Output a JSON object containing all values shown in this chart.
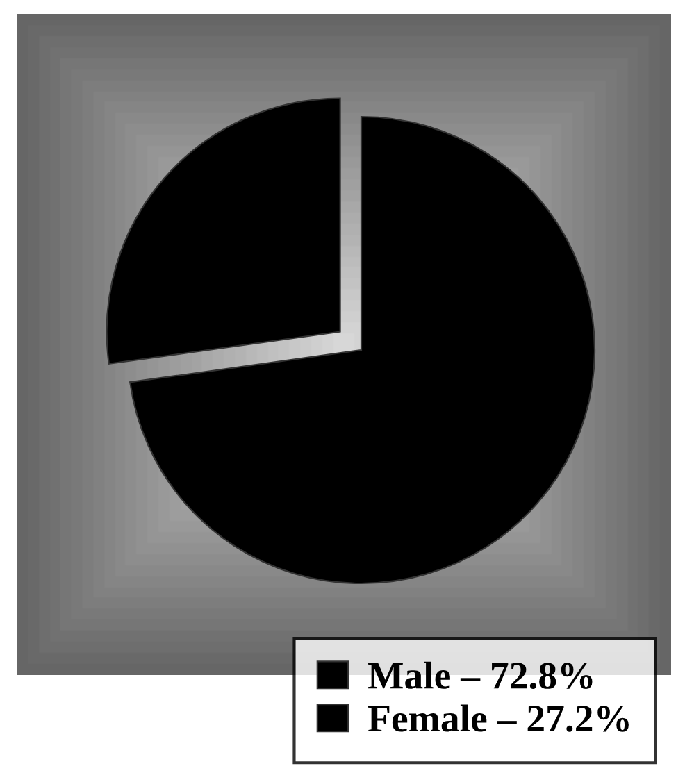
{
  "chart_data": {
    "type": "pie",
    "categories": [
      "Male",
      "Female"
    ],
    "values": [
      72.8,
      27.2
    ],
    "colors": [
      "#000000",
      "#000000"
    ],
    "value_labels": [
      "72.8%",
      "27.2%"
    ],
    "legend": "bottom right"
  }
}
